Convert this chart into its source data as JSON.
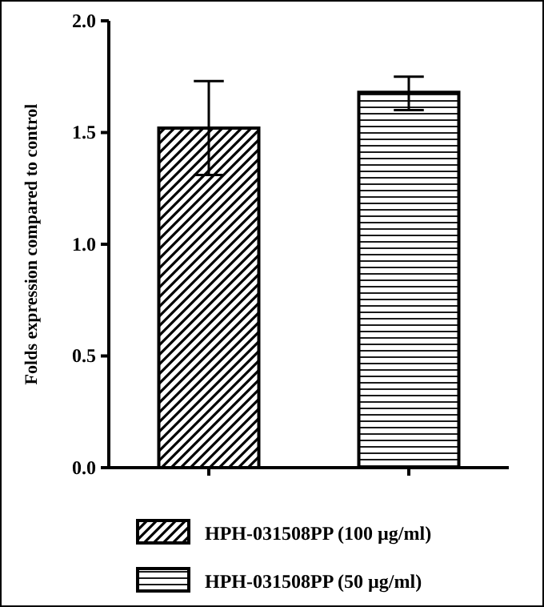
{
  "chart_data": {
    "type": "bar",
    "ylabel": "Folds expression compared to control",
    "categories": [
      null,
      null
    ],
    "series": [
      {
        "name": "HPH-031508PP (100 µg/ml)",
        "color": "#000000",
        "values": [
          1.52,
          null
        ],
        "errors": [
          [
            1.31,
            1.73
          ],
          null
        ]
      },
      {
        "name": "HPH-031508PP (50 µg/ml)",
        "color": "#000000",
        "values": [
          null,
          1.68
        ],
        "errors": [
          null,
          [
            1.6,
            1.75
          ]
        ]
      }
    ],
    "ylim": [
      0,
      2
    ],
    "yticks": [
      {
        "value": 0,
        "label": "0.0"
      },
      {
        "value": 0.5,
        "label": "0.5"
      },
      {
        "value": 1,
        "label": "1.0"
      },
      {
        "value": 1.5,
        "label": "1.5"
      },
      {
        "value": 2,
        "label": "2.0"
      }
    ],
    "legend": "bottom"
  }
}
